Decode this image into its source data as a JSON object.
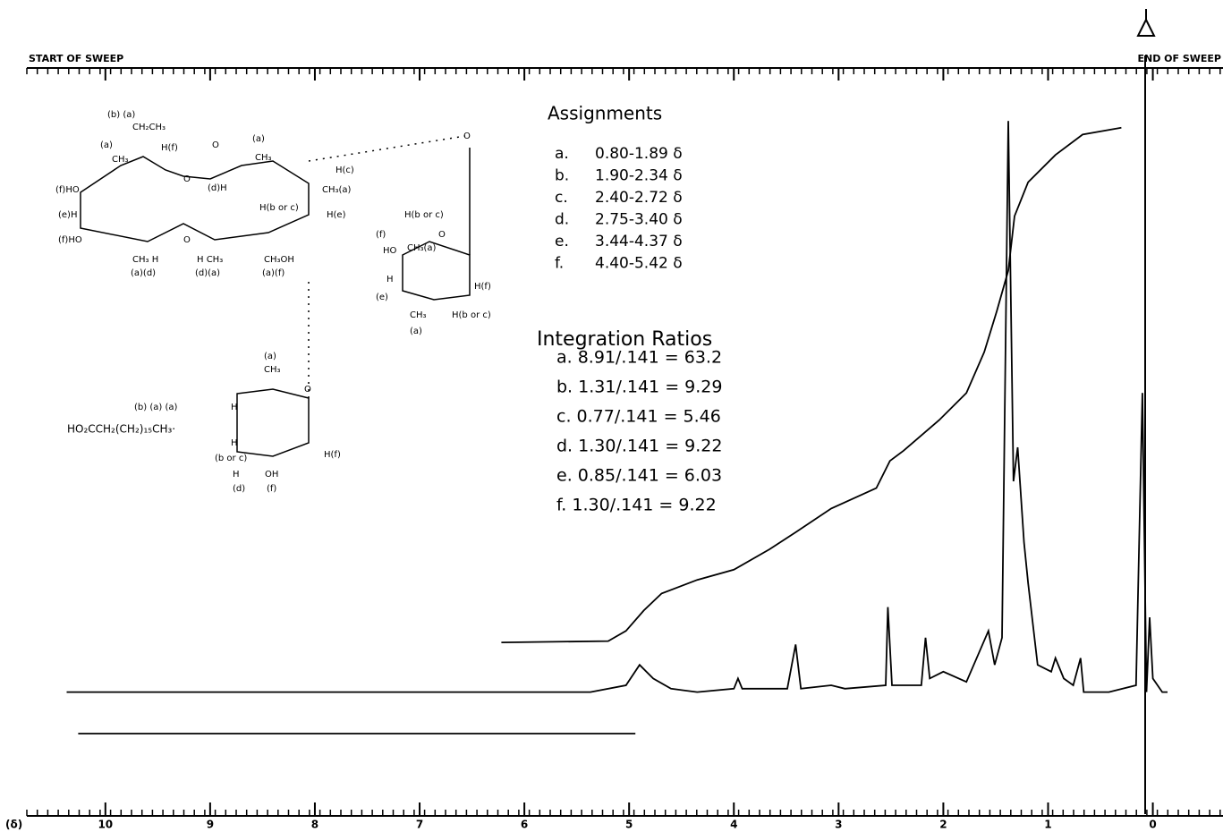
{
  "chart_data": {
    "type": "line",
    "start_label": "START OF SWEEP",
    "end_label": "END OF SWEEP",
    "x_label": "(δ)",
    "xlim": [
      10.75,
      -0.67
    ],
    "xticks": [
      10,
      9,
      8,
      7,
      6,
      5,
      4,
      3,
      2,
      1,
      0
    ],
    "ylim": [
      0,
      100
    ],
    "series": [
      {
        "color": "#000000",
        "x": [
          10.37,
          5.37,
          5.03,
          4.9,
          4.77,
          4.6,
          4.35,
          4.0,
          3.96,
          3.92,
          3.49,
          3.41,
          3.36,
          3.07,
          2.94,
          2.55,
          2.53,
          2.49,
          2.21,
          2.17,
          2.13,
          2.0,
          1.78,
          1.57,
          1.51,
          1.44,
          1.38,
          1.33,
          1.29,
          1.23,
          1.19,
          1.1,
          0.97,
          0.93,
          0.85,
          0.76,
          0.69,
          0.66,
          0.42,
          0.16,
          0.1,
          0.06,
          0.03,
          0.0,
          -0.09,
          -0.14
        ],
        "values": [
          14,
          14,
          15,
          18,
          16,
          14.5,
          14,
          14.5,
          16,
          14.5,
          14.5,
          21,
          14.5,
          15,
          14.5,
          15,
          26.5,
          15,
          15,
          22,
          16,
          17,
          15.5,
          23,
          18,
          22,
          98,
          45,
          50,
          36,
          30,
          18,
          17,
          19,
          16,
          15,
          19,
          14,
          14,
          15,
          58,
          14,
          25,
          16,
          14,
          14
        ]
      },
      {
        "color": "#000000",
        "x": [
          6.22,
          5.2,
          5.03,
          4.86,
          4.69,
          4.35,
          4.0,
          3.66,
          3.41,
          3.07,
          2.64,
          2.51,
          2.38,
          2.04,
          1.78,
          1.61,
          1.49,
          1.38,
          1.32,
          1.19,
          0.93,
          0.67,
          0.3
        ],
        "values": [
          21.3,
          21.5,
          23,
          26,
          28.5,
          30.5,
          32,
          35,
          37.5,
          41,
          44,
          48,
          49.5,
          54,
          58,
          64,
          70,
          76,
          84,
          89,
          93,
          96,
          97
        ]
      },
      {
        "color": "#000000",
        "x": [
          10.26,
          4.94
        ],
        "values": [
          7.9,
          7.9
        ]
      }
    ],
    "assignments": {
      "title": "Assignments",
      "items": [
        {
          "letter": "a.",
          "range": "0.80-1.89 δ"
        },
        {
          "letter": "b.",
          "range": "1.90-2.34 δ"
        },
        {
          "letter": "c.",
          "range": "2.40-2.72 δ"
        },
        {
          "letter": "d.",
          "range": "2.75-3.40 δ"
        },
        {
          "letter": "e.",
          "range": "3.44-4.37 δ"
        },
        {
          "letter": "f.",
          "range": "4.40-5.42 δ"
        }
      ]
    },
    "integration": {
      "title": "Integration Ratios",
      "items": [
        "a. 8.91/.141 = 63.2",
        "b. 1.31/.141 = 9.29",
        "c. 0.77/.141 = 5.46",
        "d. 1.30/.141 = 9.22",
        "e. 0.85/.141 = 6.03",
        "f. 1.30/.141 = 9.22"
      ]
    },
    "structure_labels": [
      "(b) (a)",
      "CH₂CH₃",
      "(a)",
      "CH₃",
      "H(f)",
      "O",
      "(a)",
      "(f)HO",
      "O",
      "(d)H",
      "CH₃",
      "H(c)",
      "CH₃(a)",
      "(e)H",
      "H(b or c)",
      "H(e)",
      "(f)HO",
      "O",
      "CH₃ H",
      "(a)(d)",
      "H CH₃",
      "(d)(a)",
      "CH₃OH",
      "(a)(f)",
      "O",
      "H(b or c)",
      "O",
      "(f)",
      "HO",
      "CH₃(a)",
      "(e)",
      "H",
      "H(f)",
      "CH₃",
      "H(b or c)",
      "(a)",
      "(a)",
      "CH₃",
      "(b) (a) (a)",
      "HO₂CCH₂(CH₂)₁₅CH₃·",
      "O",
      "H",
      "H",
      "(b or c)",
      "H(f)",
      "H",
      "OH",
      "(d)",
      "(f)"
    ]
  }
}
